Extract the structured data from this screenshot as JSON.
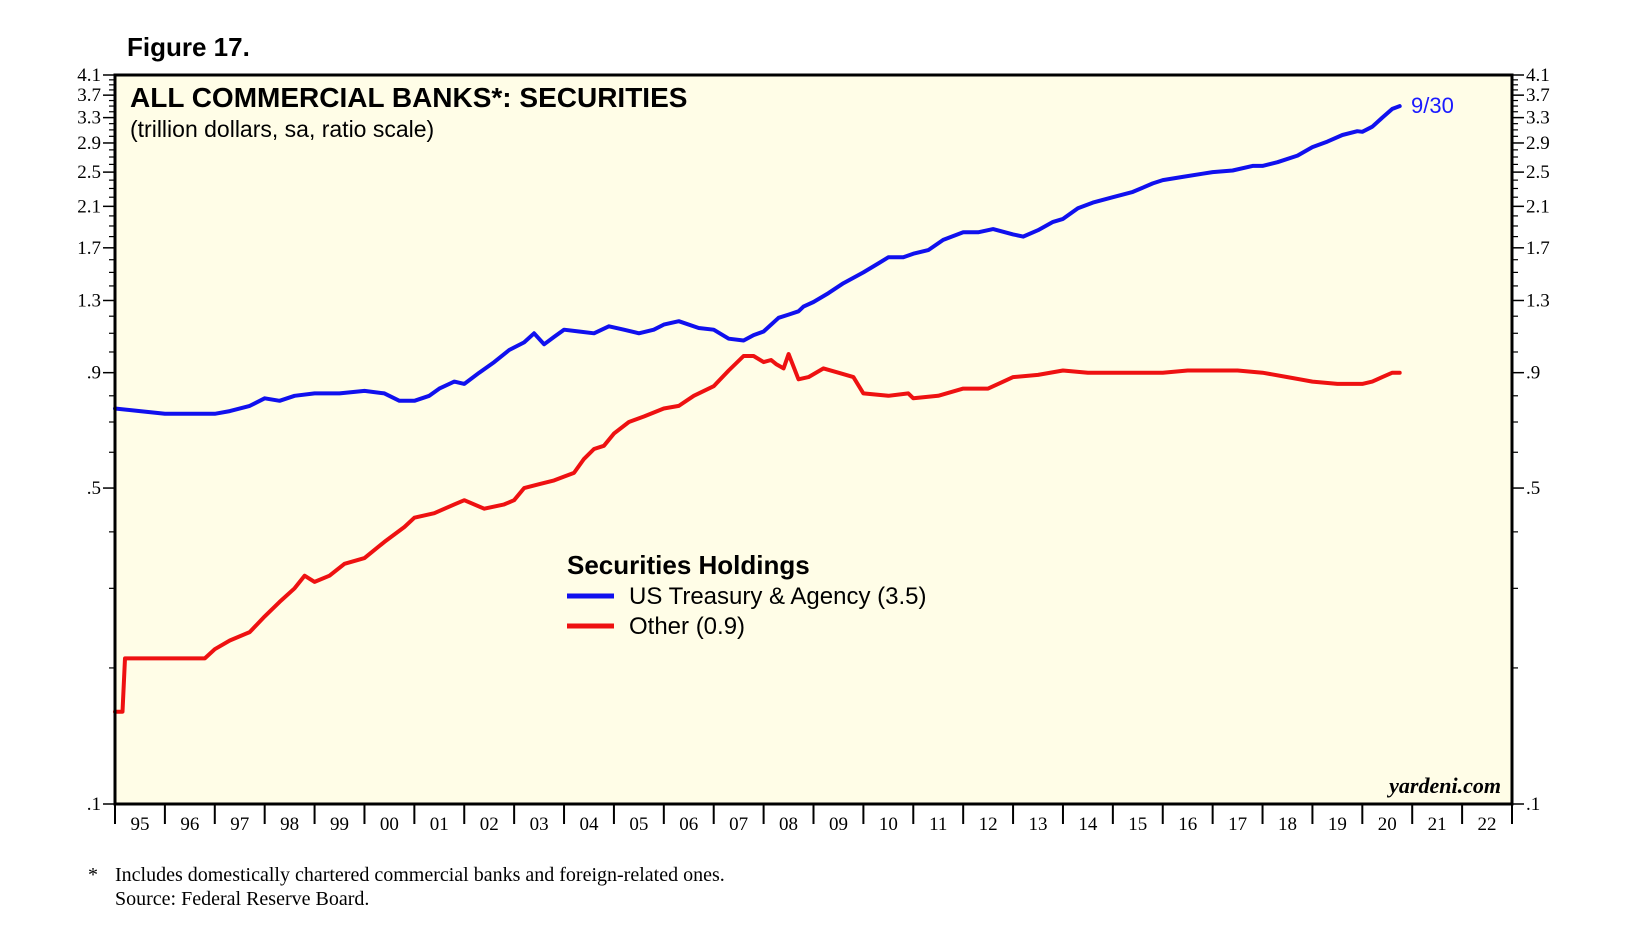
{
  "figure_label": "Figure 17.",
  "footnote": {
    "marker": "*",
    "text": "Includes domestically chartered commercial banks and foreign-related ones.",
    "source": "Source: Federal Reserve Board."
  },
  "watermark": "yardeni.com",
  "colors": {
    "plot_background": "#fffde7",
    "treasury": "#1010ee",
    "other": "#ee1111",
    "end_label": "#1a1aff"
  },
  "chart_data": {
    "type": "line",
    "title": "ALL COMMERCIAL BANKS*: SECURITIES",
    "subtitle": "(trillion dollars, sa, ratio scale)",
    "y_scale": "log",
    "ylim": [
      0.1,
      4.1
    ],
    "y_ticks": [
      0.1,
      0.5,
      0.9,
      1.3,
      1.7,
      2.1,
      2.5,
      2.9,
      3.3,
      3.7,
      4.1
    ],
    "y_tick_labels": [
      ".1",
      ".5",
      ".9",
      "1.3",
      "1.7",
      "2.1",
      "2.5",
      "2.9",
      "3.3",
      "3.7",
      "4.1"
    ],
    "y_minor_ticks": [
      0.2,
      0.3,
      0.4,
      0.6,
      0.7,
      0.8,
      1.0,
      1.1,
      1.2,
      1.4,
      1.5,
      1.6,
      1.8,
      1.9,
      2.0,
      2.2,
      2.3,
      2.4,
      2.6,
      2.7,
      2.8,
      3.0,
      3.1,
      3.2,
      3.4,
      3.5,
      3.6,
      3.8,
      3.9,
      4.0
    ],
    "xlim": [
      1995,
      2023
    ],
    "x_tick_labels": [
      "95",
      "96",
      "97",
      "98",
      "99",
      "00",
      "01",
      "02",
      "03",
      "04",
      "05",
      "06",
      "07",
      "08",
      "09",
      "10",
      "11",
      "12",
      "13",
      "14",
      "15",
      "16",
      "17",
      "18",
      "19",
      "20",
      "21",
      "22"
    ],
    "grid": false,
    "legend": {
      "title": "Securities Holdings",
      "position": "center",
      "entries": [
        {
          "label": "US Treasury & Agency (3.5)",
          "series": "treasury"
        },
        {
          "label": "Other (0.9)",
          "series": "other"
        }
      ]
    },
    "end_label": "9/30",
    "series": [
      {
        "key": "treasury",
        "name": "US Treasury & Agency",
        "x": [
          1995.0,
          1995.5,
          1996.0,
          1996.5,
          1997.0,
          1997.3,
          1997.7,
          1998.0,
          1998.3,
          1998.6,
          1999.0,
          1999.5,
          2000.0,
          2000.4,
          2000.7,
          2001.0,
          2001.3,
          2001.5,
          2001.8,
          2002.0,
          2002.3,
          2002.6,
          2002.9,
          2003.2,
          2003.4,
          2003.6,
          2003.8,
          2004.0,
          2004.3,
          2004.6,
          2004.9,
          2005.2,
          2005.5,
          2005.8,
          2006.0,
          2006.3,
          2006.7,
          2007.0,
          2007.3,
          2007.6,
          2007.8,
          2008.0,
          2008.3,
          2008.5,
          2008.7,
          2008.8,
          2009.0,
          2009.3,
          2009.6,
          2010.0,
          2010.3,
          2010.5,
          2010.8,
          2011.0,
          2011.3,
          2011.6,
          2012.0,
          2012.3,
          2012.6,
          2013.0,
          2013.2,
          2013.5,
          2013.8,
          2014.0,
          2014.3,
          2014.6,
          2015.0,
          2015.4,
          2015.8,
          2016.0,
          2016.4,
          2016.8,
          2017.0,
          2017.4,
          2017.8,
          2018.0,
          2018.3,
          2018.7,
          2019.0,
          2019.3,
          2019.6,
          2019.9,
          2020.0,
          2020.2,
          2020.4,
          2020.6,
          2020.75
        ],
        "values": [
          0.75,
          0.74,
          0.73,
          0.73,
          0.73,
          0.74,
          0.76,
          0.79,
          0.78,
          0.8,
          0.81,
          0.81,
          0.82,
          0.81,
          0.78,
          0.78,
          0.8,
          0.83,
          0.86,
          0.85,
          0.9,
          0.95,
          1.01,
          1.05,
          1.1,
          1.04,
          1.08,
          1.12,
          1.11,
          1.1,
          1.14,
          1.12,
          1.1,
          1.12,
          1.15,
          1.17,
          1.13,
          1.12,
          1.07,
          1.06,
          1.09,
          1.11,
          1.19,
          1.21,
          1.23,
          1.26,
          1.29,
          1.35,
          1.42,
          1.5,
          1.57,
          1.62,
          1.62,
          1.65,
          1.68,
          1.77,
          1.84,
          1.84,
          1.87,
          1.82,
          1.8,
          1.86,
          1.94,
          1.97,
          2.08,
          2.14,
          2.2,
          2.26,
          2.36,
          2.4,
          2.44,
          2.48,
          2.5,
          2.52,
          2.58,
          2.58,
          2.63,
          2.72,
          2.84,
          2.92,
          3.02,
          3.08,
          3.07,
          3.15,
          3.3,
          3.45,
          3.5
        ]
      },
      {
        "key": "other",
        "name": "Other",
        "x": [
          1995.0,
          1995.15,
          1995.2,
          1995.5,
          1995.8,
          1996.0,
          1996.4,
          1996.8,
          1997.0,
          1997.3,
          1997.7,
          1998.0,
          1998.3,
          1998.6,
          1998.8,
          1999.0,
          1999.3,
          1999.6,
          2000.0,
          2000.4,
          2000.8,
          2001.0,
          2001.4,
          2001.8,
          2002.0,
          2002.4,
          2002.8,
          2003.0,
          2003.2,
          2003.5,
          2003.8,
          2004.0,
          2004.2,
          2004.4,
          2004.6,
          2004.8,
          2005.0,
          2005.3,
          2005.6,
          2006.0,
          2006.3,
          2006.6,
          2007.0,
          2007.3,
          2007.6,
          2007.8,
          2008.0,
          2008.15,
          2008.25,
          2008.4,
          2008.5,
          2008.7,
          2008.9,
          2009.2,
          2009.5,
          2009.8,
          2010.0,
          2010.5,
          2010.9,
          2011.0,
          2011.5,
          2012.0,
          2012.5,
          2013.0,
          2013.5,
          2014.0,
          2014.5,
          2015.0,
          2015.5,
          2016.0,
          2016.5,
          2017.0,
          2017.5,
          2018.0,
          2018.5,
          2019.0,
          2019.5,
          2019.9,
          2020.0,
          2020.2,
          2020.4,
          2020.6,
          2020.75
        ],
        "values": [
          0.16,
          0.16,
          0.21,
          0.21,
          0.21,
          0.21,
          0.21,
          0.21,
          0.22,
          0.23,
          0.24,
          0.26,
          0.28,
          0.3,
          0.32,
          0.31,
          0.32,
          0.34,
          0.35,
          0.38,
          0.41,
          0.43,
          0.44,
          0.46,
          0.47,
          0.45,
          0.46,
          0.47,
          0.5,
          0.51,
          0.52,
          0.53,
          0.54,
          0.58,
          0.61,
          0.62,
          0.66,
          0.7,
          0.72,
          0.75,
          0.76,
          0.8,
          0.84,
          0.91,
          0.98,
          0.98,
          0.95,
          0.96,
          0.94,
          0.92,
          0.99,
          0.87,
          0.88,
          0.92,
          0.9,
          0.88,
          0.81,
          0.8,
          0.81,
          0.79,
          0.8,
          0.83,
          0.83,
          0.88,
          0.89,
          0.91,
          0.9,
          0.9,
          0.9,
          0.9,
          0.91,
          0.91,
          0.91,
          0.9,
          0.88,
          0.86,
          0.85,
          0.85,
          0.85,
          0.86,
          0.88,
          0.9,
          0.9
        ]
      }
    ]
  }
}
